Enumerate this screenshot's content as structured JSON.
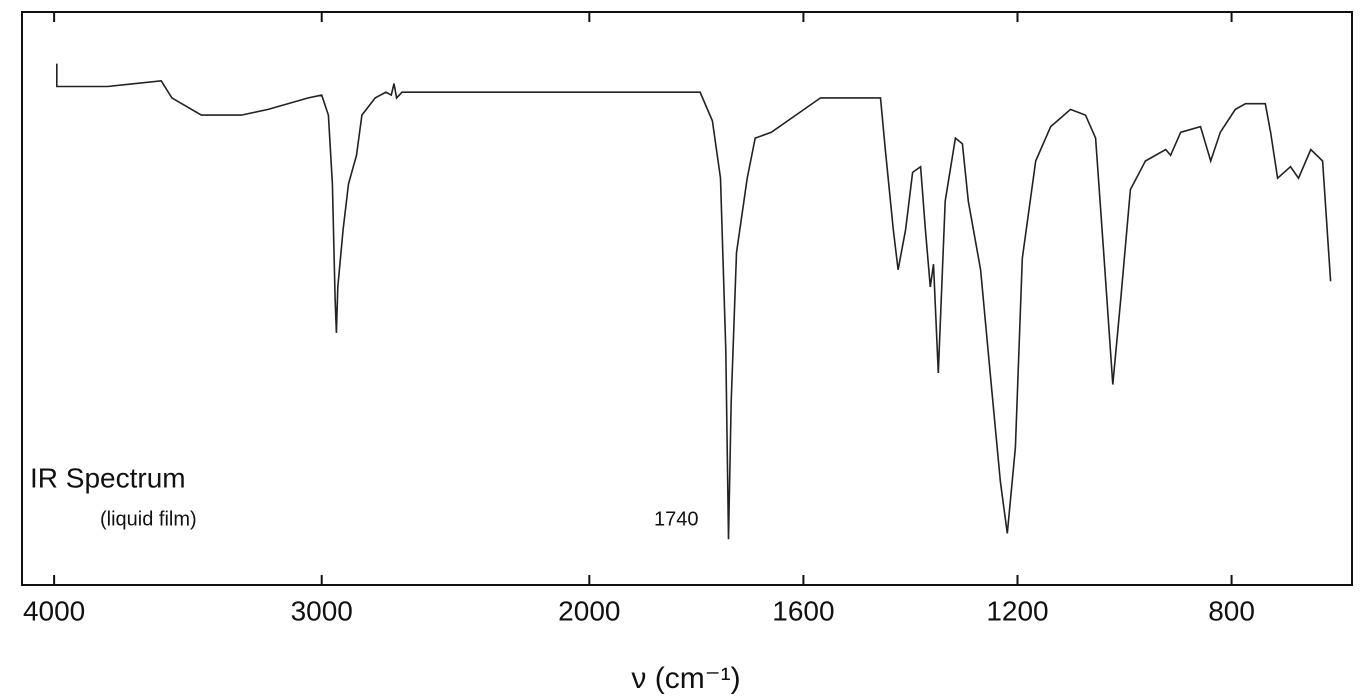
{
  "chart_data": {
    "type": "line",
    "title": "IR Spectrum",
    "subtitle": "(liquid film)",
    "x_label": "ν  (cm⁻¹)",
    "annotations": [
      {
        "text": "1740",
        "x": 1740
      }
    ],
    "xlim": [
      4120,
      575
    ],
    "x_scale_break": 2000,
    "ylim": [
      0,
      100
    ],
    "xticks": [
      4000,
      3000,
      2000,
      1600,
      1200,
      800
    ],
    "grid": false,
    "series": [
      {
        "name": null,
        "color": "#222222",
        "x": [
          3990,
          3990,
          3800,
          3600,
          3560,
          3450,
          3300,
          3200,
          3050,
          3000,
          2975,
          2960,
          2950,
          2945,
          2940,
          2920,
          2900,
          2870,
          2850,
          2800,
          2760,
          2740,
          2730,
          2720,
          2700,
          2500,
          2200,
          2000,
          1793,
          1770,
          1755,
          1745,
          1740,
          1735,
          1725,
          1705,
          1690,
          1660,
          1568,
          1456,
          1447,
          1432,
          1423,
          1409,
          1396,
          1381,
          1372,
          1363,
          1357,
          1348,
          1335,
          1316,
          1303,
          1292,
          1269,
          1250,
          1232,
          1219,
          1204,
          1191,
          1166,
          1138,
          1101,
          1073,
          1054,
          1039,
          1022,
          1007,
          989,
          961,
          923,
          914,
          895,
          858,
          839,
          821,
          793,
          774,
          737,
          727,
          714,
          690,
          675,
          652,
          630,
          615
        ],
        "values": [
          91,
          87,
          87,
          88,
          85,
          82,
          82,
          83,
          85,
          85.5,
          82,
          70,
          50,
          44,
          52,
          62,
          70,
          75,
          82,
          85,
          86,
          85.5,
          87.5,
          85,
          86,
          86,
          86,
          86,
          86,
          81,
          71,
          41,
          8,
          32,
          58,
          71,
          78,
          79,
          85,
          85,
          76,
          62,
          55,
          62,
          72,
          73,
          62,
          52,
          56,
          37,
          67,
          78,
          77,
          67,
          55,
          36,
          18,
          9,
          24,
          57,
          74,
          80,
          83,
          82,
          78,
          58,
          35,
          50,
          69,
          74,
          76,
          75,
          79,
          80,
          74,
          79,
          83,
          84,
          84,
          79,
          71,
          73,
          71,
          76,
          74,
          53
        ]
      }
    ]
  }
}
